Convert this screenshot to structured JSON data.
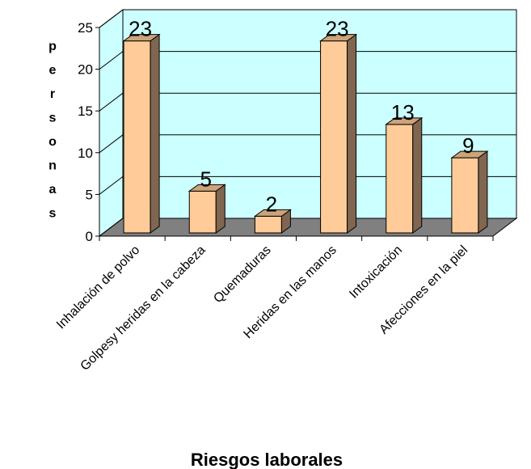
{
  "chart_data": {
    "type": "bar",
    "x_label": "Riesgos laborales",
    "y_label": "personas",
    "categories": [
      "Inhalación de polvo",
      "Golpesy heridas en la cabeza",
      "Quemaduras",
      "Heridas en las manos",
      "Intoxicación",
      "Afecciones en la piel"
    ],
    "values": [
      23,
      5,
      2,
      23,
      13,
      9
    ],
    "color": "#ffcc99",
    "wall_color": "#ccffff",
    "floor_color": "#808080",
    "ylim": [
      0,
      25
    ],
    "yticks": [
      0,
      5,
      10,
      15,
      20,
      25
    ],
    "grid": true
  }
}
